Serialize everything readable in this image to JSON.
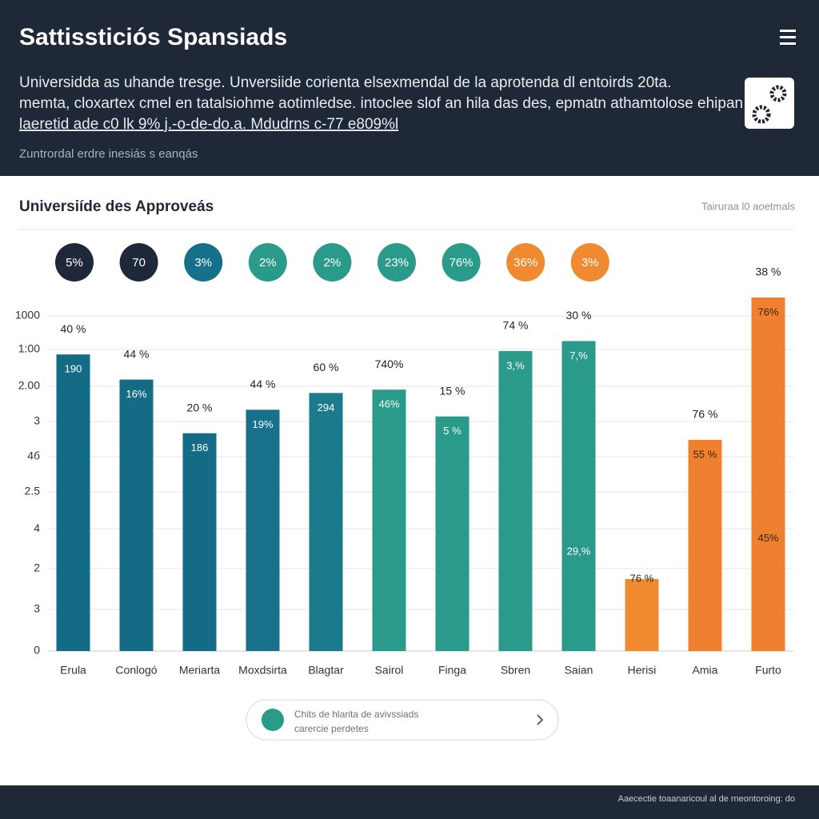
{
  "header": {
    "title": "Sattissticiós Spansiads",
    "paragraph": [
      "Universidda as uhande tresge. Unversiide corienta elsexmendal de la aprotenda dl entoirds 20ta.",
      "memta, cloxartex cmel en tatalsiohme aotimledse. intoclee slof an hila das des, epmatn athamtolose ehipan",
      "laeretid ade c0 lk 9% j.-o-de-do.a. Mdudrns c-77 e809%l"
    ],
    "subtitle": "Zuntrordal erdre inesiás s eanqás"
  },
  "card": {
    "title": "Universiíde des Approveás",
    "note": "Tairuraa l0 aoetmals",
    "badges": [
      {
        "label": "5%",
        "color": "#1e2838"
      },
      {
        "label": "70",
        "color": "#1e2838"
      },
      {
        "label": "3%",
        "color": "#17708a"
      },
      {
        "label": "2%",
        "color": "#2a9a8a"
      },
      {
        "label": "2%",
        "color": "#2a9a8a"
      },
      {
        "label": "23%",
        "color": "#2a9a8a"
      },
      {
        "label": "76%",
        "color": "#2a9a8a"
      },
      {
        "label": "36%",
        "color": "#f08a30"
      },
      {
        "label": "3%",
        "color": "#f08a30"
      }
    ]
  },
  "chart_data": {
    "type": "bar",
    "categories": [
      "Erula",
      "Conlogó",
      "Meriarta",
      "Moxdsirta",
      "Blagtar",
      "Sairol",
      "Finga",
      "Sbren",
      "Saian",
      "Herisi",
      "Amia",
      "Furto"
    ],
    "values": [
      88.5,
      81,
      65,
      72,
      77,
      78,
      70,
      89.5,
      92.5,
      21.5,
      63,
      105.5
    ],
    "colors": [
      "#146b86",
      "#146b86",
      "#146b86",
      "#17718a",
      "#1b7a8c",
      "#2a9a8a",
      "#2a9a8a",
      "#2a9a8a",
      "#2a9a8a",
      "#f08a30",
      "#ef8030",
      "#ef8030"
    ],
    "top_labels": [
      "40 %",
      "44 %",
      "20 %",
      "44 %",
      "60 %",
      "740%",
      "15 %",
      "74 %",
      "30 %",
      null,
      "76 %",
      "38 %"
    ],
    "inner_labels": [
      [
        "190"
      ],
      [
        "16%"
      ],
      [
        "186"
      ],
      [
        "19%"
      ],
      [
        "294"
      ],
      [
        "46%"
      ],
      [
        "5 %"
      ],
      [
        "3,%"
      ],
      [
        "7,%",
        "29,%"
      ],
      [
        "76 %"
      ],
      [
        "55 %"
      ],
      [
        "76%",
        "45%"
      ]
    ],
    "ylim": [
      0,
      110
    ],
    "yticks": [
      0,
      {
        "value": 12.4,
        "label": "3"
      },
      {
        "value": 24.6,
        "label": "2"
      },
      {
        "value": 36.5,
        "label": "4"
      },
      {
        "value": 47.5,
        "label": "2.5"
      },
      {
        "value": 58,
        "label": "4б"
      },
      {
        "value": 68.5,
        "label": "3"
      },
      {
        "value": 79,
        "label": "2.00"
      },
      {
        "value": 90,
        "label": "1:00"
      },
      {
        "value": 100,
        "label": "1000"
      }
    ],
    "grid": true
  },
  "pill": {
    "line1": "Chits de hlarita de avivssiads",
    "line2": "carercie perdetes"
  },
  "footer": "Aaecectie toaanaricoul al de rneontoroing: do"
}
